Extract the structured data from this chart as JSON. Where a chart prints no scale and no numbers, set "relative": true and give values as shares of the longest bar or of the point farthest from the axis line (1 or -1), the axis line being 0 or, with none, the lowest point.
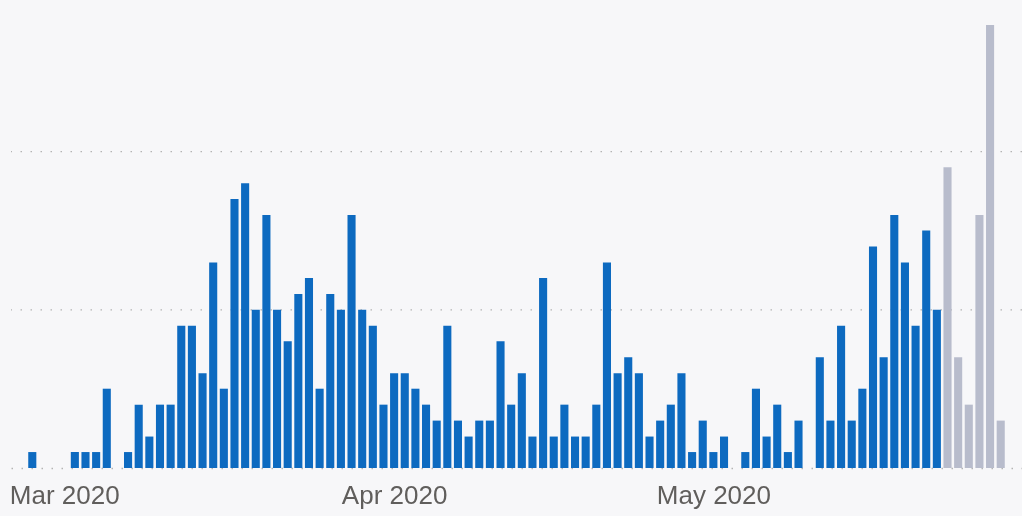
{
  "chart_data": {
    "type": "bar",
    "relative": true,
    "x": [
      "2020-02-27",
      "2020-02-28",
      "2020-02-29",
      "2020-03-01",
      "2020-03-02",
      "2020-03-03",
      "2020-03-04",
      "2020-03-05",
      "2020-03-06",
      "2020-03-07",
      "2020-03-08",
      "2020-03-09",
      "2020-03-10",
      "2020-03-11",
      "2020-03-12",
      "2020-03-13",
      "2020-03-14",
      "2020-03-15",
      "2020-03-16",
      "2020-03-17",
      "2020-03-18",
      "2020-03-19",
      "2020-03-20",
      "2020-03-21",
      "2020-03-22",
      "2020-03-23",
      "2020-03-24",
      "2020-03-25",
      "2020-03-26",
      "2020-03-27",
      "2020-03-28",
      "2020-03-29",
      "2020-03-30",
      "2020-03-31",
      "2020-04-01",
      "2020-04-02",
      "2020-04-03",
      "2020-04-04",
      "2020-04-05",
      "2020-04-06",
      "2020-04-07",
      "2020-04-08",
      "2020-04-09",
      "2020-04-10",
      "2020-04-11",
      "2020-04-12",
      "2020-04-13",
      "2020-04-14",
      "2020-04-15",
      "2020-04-16",
      "2020-04-17",
      "2020-04-18",
      "2020-04-19",
      "2020-04-20",
      "2020-04-21",
      "2020-04-22",
      "2020-04-23",
      "2020-04-24",
      "2020-04-25",
      "2020-04-26",
      "2020-04-27",
      "2020-04-28",
      "2020-04-29",
      "2020-04-30",
      "2020-05-01",
      "2020-05-02",
      "2020-05-03",
      "2020-05-04",
      "2020-05-05",
      "2020-05-06",
      "2020-05-07",
      "2020-05-08",
      "2020-05-09",
      "2020-05-10",
      "2020-05-11",
      "2020-05-12",
      "2020-05-13",
      "2020-05-14",
      "2020-05-15",
      "2020-05-16",
      "2020-05-17",
      "2020-05-18",
      "2020-05-19",
      "2020-05-20",
      "2020-05-21",
      "2020-05-22",
      "2020-05-23",
      "2020-05-24",
      "2020-05-25",
      "2020-05-26",
      "2020-05-27",
      "2020-05-28"
    ],
    "values": [
      0.036,
      null,
      null,
      null,
      0.036,
      0.036,
      0.036,
      0.179,
      null,
      0.036,
      0.143,
      0.071,
      0.143,
      0.143,
      0.321,
      0.321,
      0.214,
      0.464,
      0.179,
      0.607,
      0.643,
      0.357,
      0.571,
      0.357,
      0.286,
      0.393,
      0.429,
      0.179,
      0.393,
      0.357,
      0.571,
      0.357,
      0.321,
      0.143,
      0.214,
      0.214,
      0.179,
      0.143,
      0.107,
      0.321,
      0.107,
      0.071,
      0.107,
      0.107,
      0.286,
      0.143,
      0.214,
      0.071,
      0.429,
      0.071,
      0.143,
      0.071,
      0.071,
      0.143,
      0.464,
      0.214,
      0.25,
      0.214,
      0.071,
      0.107,
      0.143,
      0.214,
      0.036,
      0.107,
      0.036,
      0.071,
      null,
      0.036,
      0.179,
      0.071,
      0.143,
      0.036,
      0.107,
      null,
      0.25,
      0.107,
      0.321,
      0.107,
      0.179,
      0.5,
      0.25,
      0.571,
      0.464,
      0.321,
      0.536,
      0.357,
      0.679,
      0.25,
      0.143,
      0.571,
      1,
      0.107
    ],
    "colors": [
      "#0d6ac0",
      "#0d6ac0",
      "#0d6ac0",
      "#0d6ac0",
      "#0d6ac0",
      "#0d6ac0",
      "#0d6ac0",
      "#0d6ac0",
      "#0d6ac0",
      "#0d6ac0",
      "#0d6ac0",
      "#0d6ac0",
      "#0d6ac0",
      "#0d6ac0",
      "#0d6ac0",
      "#0d6ac0",
      "#0d6ac0",
      "#0d6ac0",
      "#0d6ac0",
      "#0d6ac0",
      "#0d6ac0",
      "#0d6ac0",
      "#0d6ac0",
      "#0d6ac0",
      "#0d6ac0",
      "#0d6ac0",
      "#0d6ac0",
      "#0d6ac0",
      "#0d6ac0",
      "#0d6ac0",
      "#0d6ac0",
      "#0d6ac0",
      "#0d6ac0",
      "#0d6ac0",
      "#0d6ac0",
      "#0d6ac0",
      "#0d6ac0",
      "#0d6ac0",
      "#0d6ac0",
      "#0d6ac0",
      "#0d6ac0",
      "#0d6ac0",
      "#0d6ac0",
      "#0d6ac0",
      "#0d6ac0",
      "#0d6ac0",
      "#0d6ac0",
      "#0d6ac0",
      "#0d6ac0",
      "#0d6ac0",
      "#0d6ac0",
      "#0d6ac0",
      "#0d6ac0",
      "#0d6ac0",
      "#0d6ac0",
      "#0d6ac0",
      "#0d6ac0",
      "#0d6ac0",
      "#0d6ac0",
      "#0d6ac0",
      "#0d6ac0",
      "#0d6ac0",
      "#0d6ac0",
      "#0d6ac0",
      "#0d6ac0",
      "#0d6ac0",
      "#0d6ac0",
      "#0d6ac0",
      "#0d6ac0",
      "#0d6ac0",
      "#0d6ac0",
      "#0d6ac0",
      "#0d6ac0",
      "#0d6ac0",
      "#0d6ac0",
      "#0d6ac0",
      "#0d6ac0",
      "#0d6ac0",
      "#0d6ac0",
      "#0d6ac0",
      "#0d6ac0",
      "#0d6ac0",
      "#0d6ac0",
      "#0d6ac0",
      "#0d6ac0",
      "#0d6ac0",
      "#b8bccc",
      "#b8bccc",
      "#b8bccc",
      "#b8bccc",
      "#b8bccc",
      "#b8bccc"
    ],
    "xlim": [
      "2020-02-25",
      "2020-05-30"
    ],
    "xticks": [
      {
        "value": "2020-03-01",
        "label": "Mar 2020"
      },
      {
        "value": "2020-04-01",
        "label": "Apr 2020"
      },
      {
        "value": "2020-05-01",
        "label": "May 2020"
      }
    ],
    "ref_lines": [
      {
        "axis": "y",
        "value": 0.357,
        "color": "#b4b4b4",
        "line_style": "dotted"
      },
      {
        "axis": "y",
        "value": 0.714,
        "color": "#b4b4b4",
        "line_style": "dotted"
      }
    ],
    "tick_labels": "x"
  }
}
